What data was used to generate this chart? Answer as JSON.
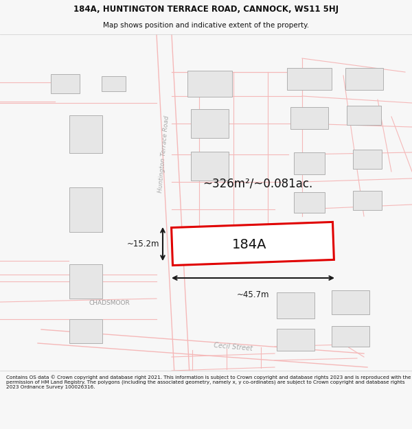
{
  "title_line1": "184A, HUNTINGTON TERRACE ROAD, CANNOCK, WS11 5HJ",
  "title_line2": "Map shows position and indicative extent of the property.",
  "area_label": "~326m²/~0.081ac.",
  "property_label": "184A",
  "width_label": "~45.7m",
  "height_label": "~15.2m",
  "street_label1": "Huntington Terrace Road",
  "street_label2": "Cecil Street",
  "area_label2": "CHADSMOOR",
  "footer_text": "Contains OS data © Crown copyright and database right 2021. This information is subject to Crown copyright and database rights 2023 and is reproduced with the permission of HM Land Registry. The polygons (including the associated geometry, namely x, y co-ordinates) are subject to Crown copyright and database rights 2023 Ordnance Survey 100026316.",
  "bg_color": "#f7f7f7",
  "map_bg": "#ffffff",
  "building_fill": "#e6e6e6",
  "building_edge": "#b0b0b0",
  "road_color": "#f5b8b8",
  "property_edge": "#e00000",
  "property_fill": "#ffffff",
  "dim_color": "#1a1a1a",
  "street_color": "#999999",
  "text_color": "#111111",
  "title_fontsize": 8.5,
  "subtitle_fontsize": 7.5,
  "footer_fontsize": 5.2
}
